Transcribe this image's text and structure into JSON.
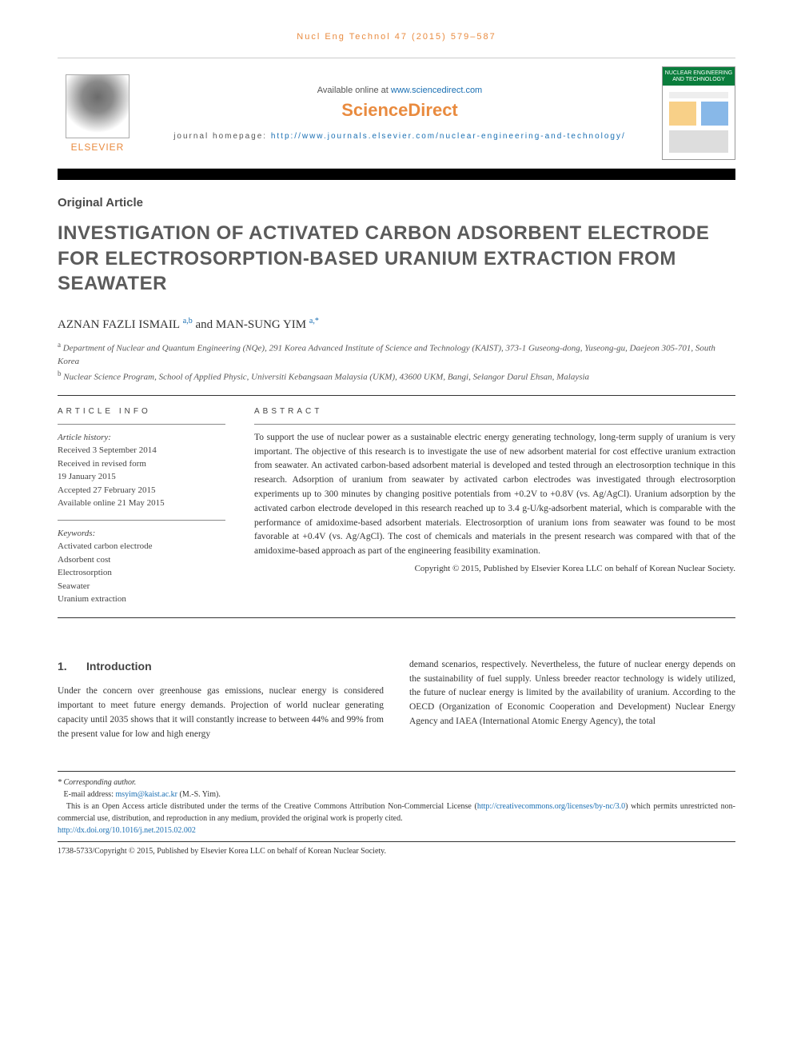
{
  "running_head": "Nucl Eng Technol 47 (2015) 579–587",
  "top": {
    "available_prefix": "Available online at ",
    "available_link_text": "www.sciencedirect.com",
    "sd_logo": "ScienceDirect",
    "homepage_prefix": "journal homepage: ",
    "homepage_link_text": "http://www.journals.elsevier.com/nuclear-engineering-and-technology/",
    "elsevier_word": "ELSEVIER",
    "cover_title": "NUCLEAR ENGINEERING AND TECHNOLOGY"
  },
  "article_type": "Original Article",
  "title": "INVESTIGATION OF ACTIVATED CARBON ADSORBENT ELECTRODE FOR ELECTROSORPTION-BASED URANIUM EXTRACTION FROM SEAWATER",
  "authors": {
    "a1_name": "AZNAN FAZLI ISMAIL",
    "a1_sup": "a,b",
    "and": " and ",
    "a2_name": "MAN-SUNG YIM",
    "a2_sup": "a,",
    "a2_star": "*"
  },
  "affiliations": {
    "a_sup": "a",
    "a_text": " Department of Nuclear and Quantum Engineering (NQe), 291 Korea Advanced Institute of Science and Technology (KAIST), 373-1 Guseong-dong, Yuseong-gu, Daejeon 305-701, South Korea",
    "b_sup": "b",
    "b_text": " Nuclear Science Program, School of Applied Physic, Universiti Kebangsaan Malaysia (UKM), 43600 UKM, Bangi, Selangor Darul Ehsan, Malaysia"
  },
  "info_head": "ARTICLE INFO",
  "abstract_head": "ABSTRACT",
  "history": {
    "label": "Article history:",
    "l1": "Received 3 September 2014",
    "l2": "Received in revised form",
    "l3": "19 January 2015",
    "l4": "Accepted 27 February 2015",
    "l5": "Available online 21 May 2015"
  },
  "keywords": {
    "label": "Keywords:",
    "k1": "Activated carbon electrode",
    "k2": "Adsorbent cost",
    "k3": "Electrosorption",
    "k4": "Seawater",
    "k5": "Uranium extraction"
  },
  "abstract": "To support the use of nuclear power as a sustainable electric energy generating technology, long-term supply of uranium is very important. The objective of this research is to investigate the use of new adsorbent material for cost effective uranium extraction from seawater. An activated carbon-based adsorbent material is developed and tested through an electrosorption technique in this research. Adsorption of uranium from seawater by activated carbon electrodes was investigated through electrosorption experiments up to 300 minutes by changing positive potentials from +0.2V to +0.8V (vs. Ag/AgCl). Uranium adsorption by the activated carbon electrode developed in this research reached up to 3.4 g-U/kg-adsorbent material, which is comparable with the performance of amidoxime-based adsorbent materials. Electrosorption of uranium ions from seawater was found to be most favorable at +0.4V (vs. Ag/AgCl). The cost of chemicals and materials in the present research was compared with that of the amidoxime-based approach as part of the engineering feasibility examination.",
  "abstract_copyright": "Copyright © 2015, Published by Elsevier Korea LLC on behalf of Korean Nuclear Society.",
  "section1": {
    "num": "1.",
    "title": "Introduction",
    "col_left": "Under the concern over greenhouse gas emissions, nuclear energy is considered important to meet future energy demands. Projection of world nuclear generating capacity until 2035 shows that it will constantly increase to between 44% and 99% from the present value for low and high energy",
    "col_right": "demand scenarios, respectively. Nevertheless, the future of nuclear energy depends on the sustainability of fuel supply. Unless breeder reactor technology is widely utilized, the future of nuclear energy is limited by the availability of uranium. According to the OECD (Organization of Economic Cooperation and Development) Nuclear Energy Agency and IAEA (International Atomic Energy Agency), the total"
  },
  "footnotes": {
    "corr_label": "* Corresponding author.",
    "email_label": "E-mail address: ",
    "email_link": "msyim@kaist.ac.kr",
    "email_tail": " (M.-S. Yim).",
    "oa_text_1": "This is an Open Access article distributed under the terms of the Creative Commons Attribution Non-Commercial License (",
    "oa_link": "http://creativecommons.org/licenses/by-nc/3.0",
    "oa_text_2": ") which permits unrestricted non-commercial use, distribution, and reproduction in any medium, provided the original work is properly cited.",
    "doi": "http://dx.doi.org/10.1016/j.net.2015.02.002",
    "isbn_line": "1738-5733/Copyright © 2015, Published by Elsevier Korea LLC on behalf of Korean Nuclear Society."
  },
  "colors": {
    "accent_orange": "#e98b3f",
    "link_blue": "#1a6fb3",
    "cover_green": "#0a7d3c",
    "title_gray": "#5b5b5b",
    "body_text": "#333333"
  }
}
